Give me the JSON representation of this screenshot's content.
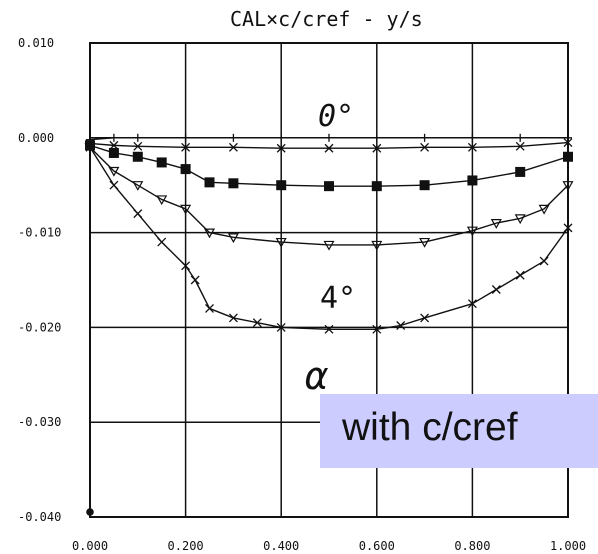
{
  "chart_data": {
    "type": "line",
    "title": "CAL×c/cref - y/s",
    "xlabel": "",
    "ylabel": "",
    "xlim": [
      0,
      1
    ],
    "ylim": [
      -0.04,
      0.01
    ],
    "grid": true,
    "xticks": [
      0.0,
      0.2,
      0.4,
      0.6,
      0.8,
      1.0
    ],
    "xtick_labels": [
      "0.000",
      "0.200",
      "0.400",
      "0.600",
      "0.800",
      "1.000"
    ],
    "yticks": [
      0.01,
      0.0,
      -0.01,
      -0.02,
      -0.03,
      -0.04
    ],
    "ytick_labels": [
      "0.010",
      "0.000",
      "-0.010",
      "-0.020",
      "-0.030",
      "-0.040"
    ],
    "annotations": [
      "0°",
      "4°",
      "α"
    ],
    "series": [
      {
        "marker": "plus",
        "x": [
          0.0,
          0.05,
          0.1,
          0.2,
          0.3,
          0.4,
          0.5,
          0.6,
          0.7,
          0.8,
          0.9,
          1.0
        ],
        "values": [
          -0.0002,
          0.0,
          0.0,
          0.0,
          0.0,
          0.0,
          0.0,
          0.0,
          0.0,
          0.0,
          0.0,
          0.0
        ]
      },
      {
        "marker": "x",
        "x": [
          0.0,
          0.05,
          0.1,
          0.2,
          0.3,
          0.4,
          0.5,
          0.6,
          0.7,
          0.8,
          0.9,
          1.0
        ],
        "values": [
          -0.0006,
          -0.0008,
          -0.0009,
          -0.001,
          -0.001,
          -0.0011,
          -0.0011,
          -0.0011,
          -0.001,
          -0.001,
          -0.0009,
          -0.0005
        ]
      },
      {
        "marker": "square",
        "x": [
          0.0,
          0.05,
          0.1,
          0.15,
          0.2,
          0.25,
          0.3,
          0.4,
          0.5,
          0.6,
          0.7,
          0.8,
          0.9,
          1.0
        ],
        "values": [
          -0.0008,
          -0.0016,
          -0.002,
          -0.0026,
          -0.0033,
          -0.0047,
          -0.0048,
          -0.005,
          -0.0051,
          -0.0051,
          -0.005,
          -0.0045,
          -0.0036,
          -0.002
        ]
      },
      {
        "marker": "triangle",
        "x": [
          0.0,
          0.05,
          0.1,
          0.15,
          0.2,
          0.25,
          0.3,
          0.4,
          0.5,
          0.6,
          0.7,
          0.8,
          0.85,
          0.9,
          0.95,
          1.0
        ],
        "values": [
          -0.001,
          -0.0035,
          -0.005,
          -0.0065,
          -0.0075,
          -0.01,
          -0.0105,
          -0.011,
          -0.0113,
          -0.0113,
          -0.011,
          -0.0098,
          -0.009,
          -0.0085,
          -0.0075,
          -0.005
        ]
      },
      {
        "marker": "x",
        "x": [
          0.0,
          0.05,
          0.1,
          0.15,
          0.2,
          0.22,
          0.25,
          0.3,
          0.35,
          0.4,
          0.5,
          0.6,
          0.65,
          0.7,
          0.8,
          0.85,
          0.9,
          0.95,
          1.0
        ],
        "values": [
          -0.001,
          -0.005,
          -0.008,
          -0.011,
          -0.0135,
          -0.015,
          -0.018,
          -0.019,
          -0.0195,
          -0.02,
          -0.0202,
          -0.0202,
          -0.0198,
          -0.019,
          -0.0175,
          -0.016,
          -0.0145,
          -0.013,
          -0.0095
        ]
      }
    ]
  },
  "note": {
    "text": "with c/cref",
    "color": "#ccccff"
  }
}
